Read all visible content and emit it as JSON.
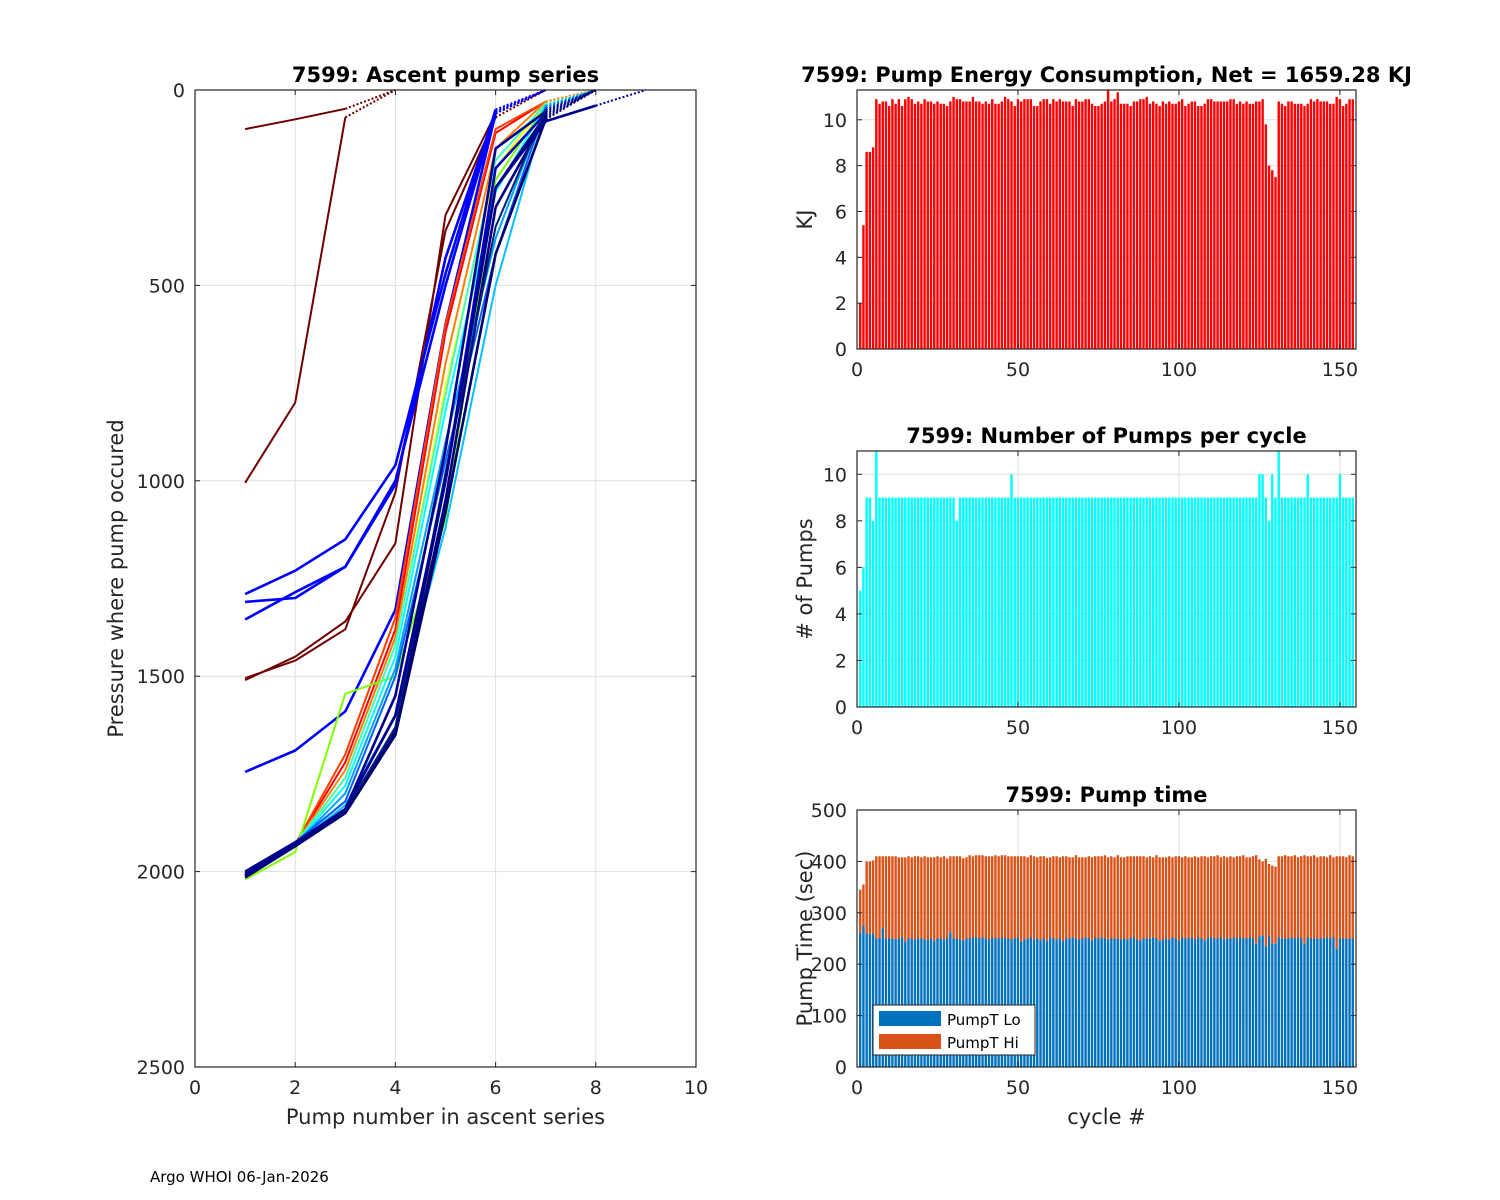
{
  "footer": "Argo WHOI 06-Jan-2026",
  "chart_data": [
    {
      "type": "line",
      "title": "7599: Ascent pump series",
      "xlabel": "Pump number in ascent series",
      "ylabel": "Pressure where pump occured",
      "xlim": [
        0,
        10
      ],
      "ylim": [
        0,
        2500
      ],
      "y_reversed": true,
      "grid": true,
      "xticks": [
        0,
        2,
        4,
        6,
        8,
        10
      ],
      "yticks": [
        0,
        500,
        1000,
        1500,
        2000,
        2500
      ],
      "note": "last segment of each series (to surface, 0) drawn dotted",
      "series": [
        {
          "color": "#700000",
          "pressure": [
            100,
            75,
            48,
            0
          ]
        },
        {
          "color": "#700000",
          "pressure": [
            1005,
            800,
            70,
            0
          ]
        },
        {
          "color": "#700000",
          "pressure": [
            1510,
            1450,
            1360,
            1160,
            320,
            60,
            0
          ]
        },
        {
          "color": "#700000",
          "pressure": [
            1505,
            1460,
            1380,
            1030,
            360,
            70,
            0
          ]
        },
        {
          "color": "#0000ff",
          "pressure": [
            1290,
            1230,
            1150,
            960,
            470,
            50,
            0
          ]
        },
        {
          "color": "#0000ff",
          "pressure": [
            1355,
            1285,
            1220,
            1010,
            430,
            55,
            0
          ]
        },
        {
          "color": "#0000ff",
          "pressure": [
            1310,
            1300,
            1220,
            1000,
            500,
            60,
            0
          ]
        },
        {
          "color": "#0000ff",
          "pressure": [
            1745,
            1690,
            1590,
            1330,
            600,
            60,
            0
          ]
        },
        {
          "color": "#ff0000",
          "pressure": [
            2010,
            1930,
            1720,
            1380,
            620,
            110,
            30,
            0
          ]
        },
        {
          "color": "#ff4000",
          "pressure": [
            2010,
            1930,
            1700,
            1350,
            600,
            100,
            30,
            0
          ]
        },
        {
          "color": "#ff8000",
          "pressure": [
            2010,
            1930,
            1740,
            1400,
            700,
            150,
            30,
            0
          ]
        },
        {
          "color": "#ffff00",
          "pressure": [
            2015,
            1935,
            1760,
            1420,
            760,
            200,
            35,
            0
          ]
        },
        {
          "color": "#80ff00",
          "pressure": [
            2020,
            1950,
            1545,
            1500,
            1100,
            230,
            40,
            0
          ]
        },
        {
          "color": "#40ffc0",
          "pressure": [
            2010,
            1930,
            1760,
            1420,
            780,
            180,
            35,
            0
          ]
        },
        {
          "color": "#00ffff",
          "pressure": [
            2010,
            1930,
            1780,
            1450,
            820,
            260,
            40,
            0
          ]
        },
        {
          "color": "#00a0ff",
          "pressure": [
            2010,
            1930,
            1800,
            1480,
            900,
            380,
            40,
            0
          ]
        },
        {
          "color": "#00c0ff",
          "pressure": [
            2010,
            1930,
            1830,
            1600,
            1120,
            500,
            50,
            0
          ]
        },
        {
          "color": "#0060ff",
          "pressure": [
            2005,
            1925,
            1820,
            1500,
            950,
            420,
            45,
            0
          ]
        },
        {
          "color": "#0000c0",
          "pressure": [
            2010,
            1930,
            1840,
            1600,
            1000,
            200,
            60,
            0
          ]
        },
        {
          "color": "#00008f",
          "pressure": [
            2000,
            1925,
            1840,
            1550,
            920,
            150,
            55,
            0
          ]
        },
        {
          "color": "#000080",
          "pressure": [
            2010,
            1935,
            1850,
            1650,
            1050,
            300,
            70,
            0
          ]
        },
        {
          "color": "#000080",
          "pressure": [
            2005,
            1930,
            1845,
            1640,
            1000,
            250,
            65,
            0
          ]
        },
        {
          "color": "#00207f",
          "pressure": [
            2010,
            1930,
            1845,
            1630,
            980,
            350,
            50,
            0
          ]
        },
        {
          "color": "#000070",
          "pressure": [
            2015,
            1935,
            1850,
            1650,
            1080,
            420,
            75,
            0
          ]
        },
        {
          "color": "#000090",
          "pressure": [
            2010,
            1930,
            1840,
            1600,
            1000,
            250,
            80,
            40,
            0
          ]
        }
      ]
    },
    {
      "type": "bar",
      "title": "7599: Pump Energy Consumption,  Net = 1659.28 KJ",
      "xlabel": "",
      "ylabel": "KJ",
      "xlim": [
        0,
        155
      ],
      "ylim": [
        0,
        11.3
      ],
      "grid": true,
      "xticks": [
        0,
        50,
        100,
        150
      ],
      "yticks": [
        0,
        2,
        4,
        6,
        8,
        10
      ],
      "color": "#ff0000",
      "values": [
        2.0,
        5.4,
        8.6,
        8.6,
        8.8,
        10.9,
        10.7,
        10.8,
        10.8,
        10.6,
        10.9,
        10.7,
        10.9,
        10.6,
        10.9,
        11.0,
        10.9,
        10.7,
        10.8,
        10.7,
        10.9,
        10.8,
        10.8,
        10.7,
        10.8,
        10.7,
        10.7,
        10.6,
        10.8,
        11.0,
        10.9,
        10.9,
        10.8,
        10.8,
        10.8,
        11.0,
        10.8,
        10.8,
        10.7,
        10.8,
        10.7,
        10.9,
        10.7,
        10.7,
        10.8,
        11.0,
        10.9,
        10.8,
        10.6,
        10.9,
        10.8,
        10.9,
        10.9,
        10.9,
        10.6,
        10.6,
        10.8,
        10.9,
        10.9,
        10.7,
        10.9,
        10.8,
        10.9,
        10.8,
        10.8,
        10.8,
        10.6,
        10.9,
        10.8,
        10.8,
        10.9,
        10.9,
        10.7,
        10.6,
        10.6,
        10.7,
        10.8,
        11.3,
        10.8,
        10.9,
        11.2,
        10.7,
        10.7,
        10.7,
        10.6,
        10.8,
        10.8,
        10.9,
        10.9,
        11.0,
        10.7,
        10.8,
        10.7,
        10.6,
        10.8,
        10.7,
        10.8,
        10.7,
        10.7,
        10.8,
        10.9,
        10.6,
        10.7,
        10.8,
        10.8,
        10.6,
        10.6,
        10.7,
        10.9,
        10.9,
        10.8,
        10.8,
        10.8,
        10.8,
        10.8,
        10.9,
        10.9,
        10.7,
        10.8,
        10.7,
        10.8,
        10.7,
        10.7,
        10.8,
        10.8,
        10.9,
        9.8,
        8.0,
        7.8,
        7.5,
        10.8,
        10.7,
        10.6,
        10.8,
        10.8,
        10.7,
        10.7,
        10.7,
        10.6,
        10.7,
        10.9,
        10.8,
        10.9,
        10.8,
        10.8,
        10.8,
        10.7,
        10.7,
        11.0,
        10.9,
        10.6,
        10.7,
        10.9,
        10.9
      ]
    },
    {
      "type": "bar",
      "title": "7599: Number of Pumps per cycle",
      "xlabel": "",
      "ylabel": "# of Pumps",
      "xlim": [
        0,
        155
      ],
      "ylim": [
        0,
        11
      ],
      "grid": true,
      "xticks": [
        0,
        50,
        100,
        150
      ],
      "yticks": [
        0,
        2,
        4,
        6,
        8,
        10
      ],
      "color": "#00ffff",
      "values": [
        5,
        6,
        9,
        9,
        8,
        11,
        9,
        9,
        9,
        9,
        9,
        9,
        9,
        9,
        9,
        9,
        9,
        9,
        9,
        9,
        9,
        9,
        9,
        9,
        9,
        9,
        9,
        9,
        9,
        9,
        8,
        9,
        9,
        9,
        9,
        9,
        9,
        9,
        9,
        9,
        9,
        9,
        9,
        9,
        9,
        9,
        9,
        10,
        9,
        9,
        9,
        9,
        9,
        9,
        9,
        9,
        9,
        9,
        9,
        9,
        9,
        9,
        9,
        9,
        9,
        9,
        9,
        9,
        9,
        9,
        9,
        9,
        9,
        9,
        9,
        9,
        9,
        9,
        9,
        9,
        9,
        9,
        9,
        9,
        9,
        9,
        9,
        9,
        9,
        9,
        9,
        9,
        9,
        9,
        9,
        9,
        9,
        9,
        9,
        9,
        9,
        9,
        9,
        9,
        9,
        9,
        9,
        9,
        9,
        9,
        9,
        9,
        9,
        9,
        9,
        9,
        9,
        9,
        9,
        9,
        9,
        9,
        9,
        9,
        10,
        10,
        9,
        8,
        10,
        9,
        11,
        9,
        9,
        9,
        9,
        9,
        9,
        9,
        9,
        10,
        9,
        9,
        9,
        9,
        9,
        9,
        9,
        9,
        9,
        10,
        9,
        9,
        9,
        9
      ]
    },
    {
      "type": "bar",
      "stacked": true,
      "title": "7599: Pump time",
      "xlabel": "cycle #",
      "ylabel": "Pump Time (sec)",
      "xlim": [
        0,
        155
      ],
      "ylim": [
        0,
        500
      ],
      "grid": true,
      "xticks": [
        0,
        50,
        100,
        150
      ],
      "yticks": [
        0,
        100,
        200,
        300,
        400,
        500
      ],
      "legend": "bottom-left",
      "series": [
        {
          "name": "PumpT Lo",
          "color": "#0072bd",
          "values": [
            260,
            275,
            260,
            258,
            260,
            250,
            250,
            270,
            250,
            250,
            250,
            248,
            250,
            252,
            244,
            250,
            250,
            248,
            250,
            250,
            248,
            248,
            250,
            245,
            250,
            250,
            248,
            250,
            262,
            250,
            250,
            248,
            246,
            250,
            250,
            252,
            252,
            250,
            252,
            250,
            248,
            252,
            250,
            250,
            252,
            250,
            250,
            248,
            250,
            252,
            244,
            248,
            250,
            252,
            248,
            250,
            246,
            250,
            245,
            252,
            250,
            248,
            250,
            245,
            250,
            250,
            252,
            250,
            248,
            250,
            252,
            250,
            246,
            252,
            250,
            252,
            250,
            248,
            250,
            250,
            250,
            248,
            250,
            248,
            250,
            252,
            248,
            246,
            250,
            250,
            250,
            252,
            250,
            245,
            248,
            250,
            248,
            252,
            250,
            246,
            252,
            250,
            250,
            252,
            248,
            252,
            250,
            246,
            252,
            252,
            250,
            250,
            252,
            248,
            250,
            250,
            252,
            250,
            252,
            250,
            250,
            252,
            250,
            240,
            254,
            256,
            235,
            255,
            240,
            240,
            252,
            250,
            250,
            250,
            252,
            250,
            252,
            250,
            240,
            252,
            250,
            250,
            250,
            250,
            250,
            252,
            250,
            252,
            230,
            250,
            250,
            250,
            250,
            250
          ]
        },
        {
          "name": "PumpT Hi",
          "color": "#d95319",
          "values": [
            85,
            80,
            140,
            142,
            142,
            160,
            160,
            140,
            160,
            160,
            160,
            162,
            158,
            156,
            164,
            160,
            158,
            162,
            160,
            158,
            162,
            160,
            158,
            163,
            160,
            158,
            162,
            156,
            148,
            160,
            160,
            162,
            160,
            158,
            162,
            158,
            160,
            162,
            160,
            160,
            162,
            158,
            162,
            160,
            160,
            162,
            160,
            162,
            160,
            158,
            166,
            162,
            158,
            160,
            162,
            158,
            164,
            160,
            162,
            156,
            160,
            162,
            158,
            165,
            160,
            158,
            156,
            162,
            160,
            158,
            156,
            160,
            162,
            158,
            160,
            158,
            162,
            160,
            160,
            158,
            162,
            160,
            158,
            162,
            160,
            158,
            162,
            164,
            160,
            158,
            160,
            156,
            162,
            163,
            160,
            158,
            162,
            156,
            160,
            164,
            156,
            160,
            158,
            156,
            162,
            156,
            160,
            164,
            156,
            158,
            160,
            162,
            156,
            162,
            158,
            160,
            156,
            160,
            158,
            162,
            158,
            156,
            160,
            172,
            150,
            144,
            170,
            140,
            152,
            150,
            158,
            160,
            162,
            160,
            158,
            162,
            156,
            160,
            172,
            158,
            160,
            162,
            158,
            160,
            160,
            156,
            162,
            156,
            180,
            160,
            160,
            158,
            162,
            160
          ]
        }
      ]
    }
  ]
}
